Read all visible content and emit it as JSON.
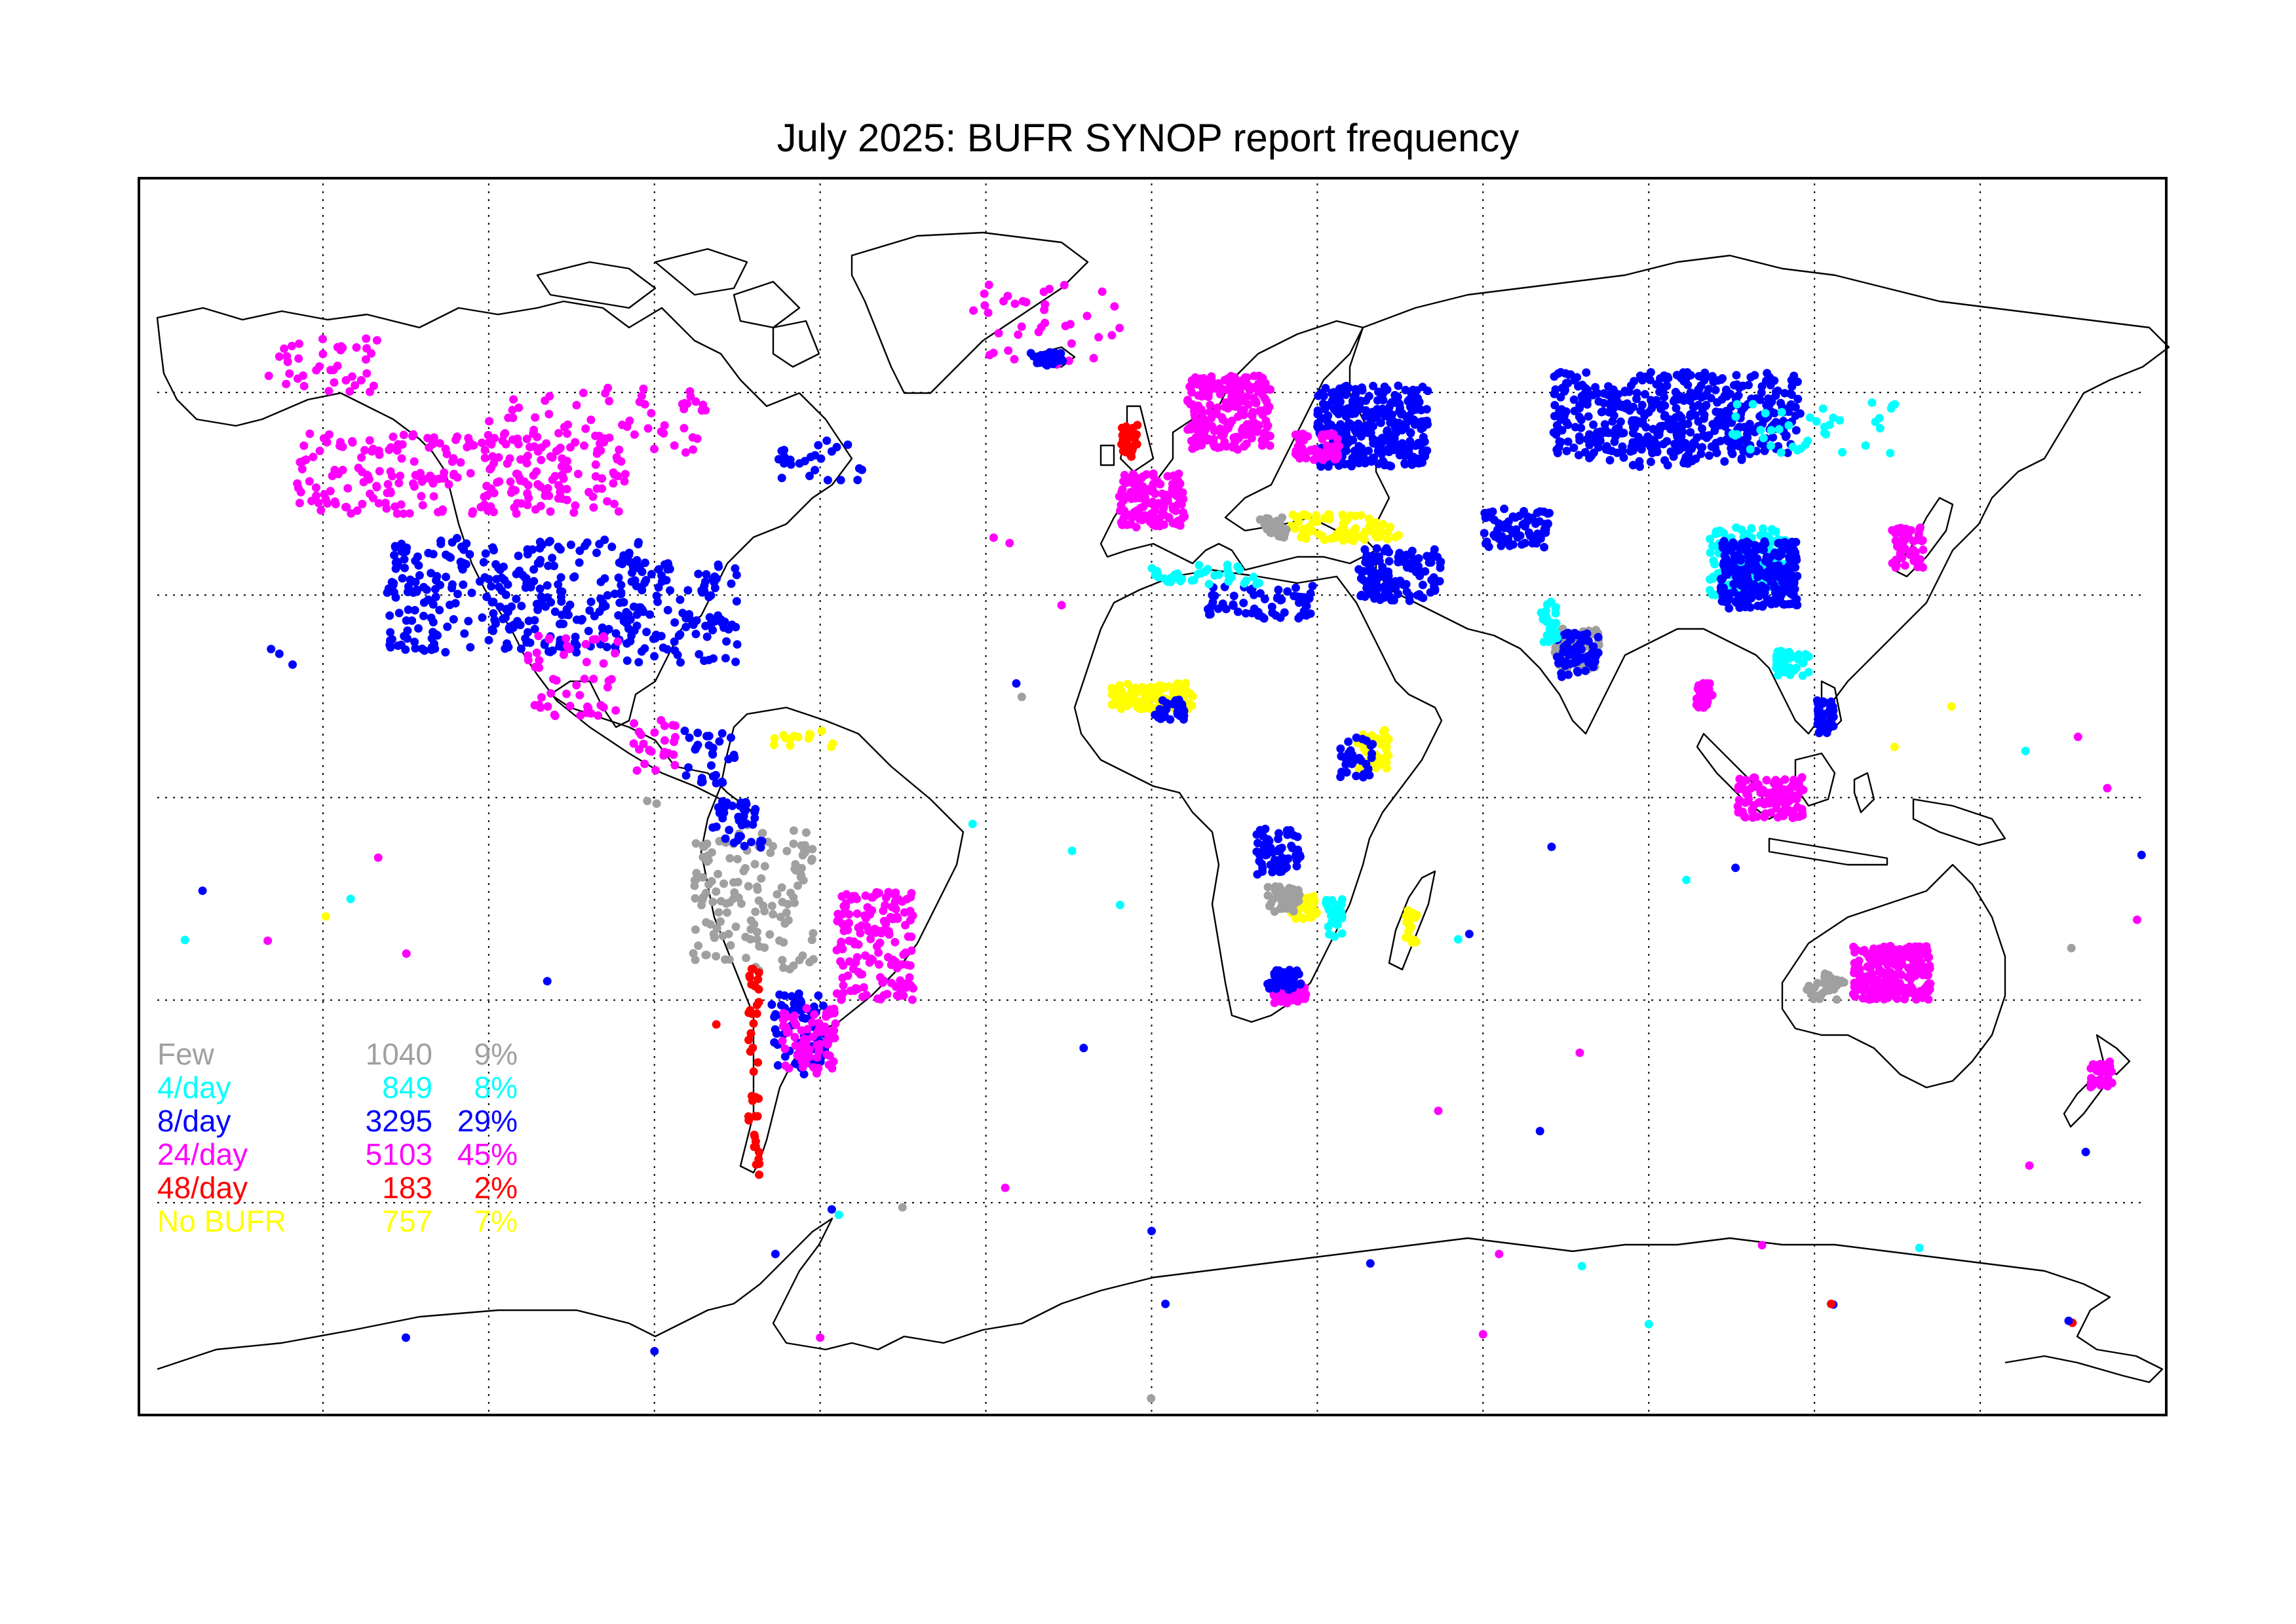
{
  "title": "July 2025: BUFR SYNOP report frequency",
  "map": {
    "projection": "equirectangular",
    "lon_range": [
      -180,
      180
    ],
    "lat_range": [
      -90,
      90
    ],
    "graticule_lon": [
      -150,
      -120,
      -90,
      -60,
      -30,
      0,
      30,
      60,
      90,
      120,
      150
    ],
    "graticule_lat": [
      -60,
      -30,
      0,
      30,
      60
    ],
    "graticule_style": "dotted"
  },
  "categories": [
    {
      "key": "few",
      "label": "Few",
      "count": "1040",
      "percent": "9%",
      "color": "#a0a0a0"
    },
    {
      "key": "four",
      "label": "4/day",
      "count": "849",
      "percent": "8%",
      "color": "#00ffff"
    },
    {
      "key": "eight",
      "label": "8/day",
      "count": "3295",
      "percent": "29%",
      "color": "#0000ff"
    },
    {
      "key": "t24",
      "label": "24/day",
      "count": "5103",
      "percent": "45%",
      "color": "#ff00ff"
    },
    {
      "key": "t48",
      "label": "48/day",
      "count": "183",
      "percent": "2%",
      "color": "#ff0000"
    },
    {
      "key": "nobufr",
      "label": "No BUFR",
      "count": "757",
      "percent": "7%",
      "color": "#ffff00"
    }
  ],
  "legend": {
    "placement": "lower-left"
  },
  "clusters": [
    {
      "cat": "t24",
      "lon": -125,
      "lat": 48,
      "w": 60,
      "h": 12,
      "n": 260
    },
    {
      "cat": "t24",
      "lon": -150,
      "lat": 64,
      "w": 20,
      "h": 8,
      "n": 40
    },
    {
      "cat": "t24",
      "lon": -100,
      "lat": 56,
      "w": 40,
      "h": 10,
      "n": 60
    },
    {
      "cat": "eight",
      "lon": -115,
      "lat": 30,
      "w": 47,
      "h": 17,
      "n": 320
    },
    {
      "cat": "eight",
      "lon": -85,
      "lat": 28,
      "w": 20,
      "h": 16,
      "n": 100
    },
    {
      "cat": "t24",
      "lon": -105,
      "lat": 18,
      "w": 18,
      "h": 12,
      "n": 50
    },
    {
      "cat": "t24",
      "lon": -90,
      "lat": 8,
      "w": 8,
      "h": 8,
      "n": 25
    },
    {
      "cat": "eight",
      "lon": -80,
      "lat": 6,
      "w": 10,
      "h": 8,
      "n": 30
    },
    {
      "cat": "few",
      "lon": -72,
      "lat": -15,
      "w": 22,
      "h": 22,
      "n": 140
    },
    {
      "cat": "t24",
      "lon": -50,
      "lat": -22,
      "w": 14,
      "h": 16,
      "n": 150
    },
    {
      "cat": "eight",
      "lon": -64,
      "lat": -35,
      "w": 10,
      "h": 12,
      "n": 70
    },
    {
      "cat": "t24",
      "lon": -62,
      "lat": -36,
      "w": 10,
      "h": 10,
      "n": 80
    },
    {
      "cat": "t48",
      "lon": -72,
      "lat": -40,
      "w": 2,
      "h": 32,
      "n": 40
    },
    {
      "cat": "eight",
      "lon": -75,
      "lat": -4,
      "w": 9,
      "h": 7,
      "n": 40
    },
    {
      "cat": "nobufr",
      "lon": -63,
      "lat": 9,
      "w": 11,
      "h": 3,
      "n": 15
    },
    {
      "cat": "eight",
      "lon": -60,
      "lat": 50,
      "w": 16,
      "h": 6,
      "n": 25
    },
    {
      "cat": "t24",
      "lon": -20,
      "lat": 70,
      "w": 30,
      "h": 12,
      "n": 40
    },
    {
      "cat": "eight",
      "lon": -19,
      "lat": 65,
      "w": 6,
      "h": 2,
      "n": 25
    },
    {
      "cat": "t24",
      "lon": 14,
      "lat": 57,
      "w": 15,
      "h": 11,
      "n": 220
    },
    {
      "cat": "t24",
      "lon": 0,
      "lat": 44,
      "w": 12,
      "h": 8,
      "n": 140
    },
    {
      "cat": "t48",
      "lon": -4,
      "lat": 53,
      "w": 3,
      "h": 5,
      "n": 35
    },
    {
      "cat": "eight",
      "lon": 40,
      "lat": 55,
      "w": 20,
      "h": 12,
      "n": 330
    },
    {
      "cat": "eight",
      "lon": 95,
      "lat": 57,
      "w": 45,
      "h": 12,
      "n": 380
    },
    {
      "cat": "four",
      "lon": 108,
      "lat": 35,
      "w": 14,
      "h": 10,
      "n": 130
    },
    {
      "cat": "eight",
      "lon": 110,
      "lat": 33,
      "w": 14,
      "h": 10,
      "n": 230
    },
    {
      "cat": "t24",
      "lon": 30,
      "lat": 52,
      "w": 8,
      "h": 4,
      "n": 60
    },
    {
      "cat": "t24",
      "lon": 137,
      "lat": 37,
      "w": 6,
      "h": 6,
      "n": 50
    },
    {
      "cat": "nobufr",
      "lon": 35,
      "lat": 40,
      "w": 20,
      "h": 4,
      "n": 70
    },
    {
      "cat": "few",
      "lon": 22,
      "lat": 40,
      "w": 5,
      "h": 3,
      "n": 30
    },
    {
      "cat": "eight",
      "lon": 45,
      "lat": 33,
      "w": 15,
      "h": 8,
      "n": 120
    },
    {
      "cat": "eight",
      "lon": 20,
      "lat": 29,
      "w": 20,
      "h": 5,
      "n": 60
    },
    {
      "cat": "four",
      "lon": 10,
      "lat": 33,
      "w": 20,
      "h": 3,
      "n": 40
    },
    {
      "cat": "nobufr",
      "lon": 0,
      "lat": 15,
      "w": 15,
      "h": 4,
      "n": 120
    },
    {
      "cat": "eight",
      "lon": 3,
      "lat": 13,
      "w": 6,
      "h": 3,
      "n": 30
    },
    {
      "cat": "eight",
      "lon": 23,
      "lat": -8,
      "w": 8,
      "h": 7,
      "n": 60
    },
    {
      "cat": "nobufr",
      "lon": 27,
      "lat": -16,
      "w": 6,
      "h": 4,
      "n": 50
    },
    {
      "cat": "few",
      "lon": 24,
      "lat": -15,
      "w": 6,
      "h": 4,
      "n": 50
    },
    {
      "cat": "four",
      "lon": 33,
      "lat": -18,
      "w": 3,
      "h": 6,
      "n": 30
    },
    {
      "cat": "t24",
      "lon": 25,
      "lat": -29,
      "w": 6,
      "h": 3,
      "n": 60
    },
    {
      "cat": "eight",
      "lon": 24,
      "lat": -27,
      "w": 6,
      "h": 3,
      "n": 40
    },
    {
      "cat": "nobufr",
      "lon": 40,
      "lat": 7,
      "w": 6,
      "h": 6,
      "n": 40
    },
    {
      "cat": "eight",
      "lon": 37,
      "lat": 6,
      "w": 6,
      "h": 6,
      "n": 30
    },
    {
      "cat": "few",
      "lon": 77,
      "lat": 22,
      "w": 8,
      "h": 6,
      "n": 60
    },
    {
      "cat": "eight",
      "lon": 77,
      "lat": 21,
      "w": 8,
      "h": 7,
      "n": 60
    },
    {
      "cat": "four",
      "lon": 72,
      "lat": 26,
      "w": 3,
      "h": 6,
      "n": 25
    },
    {
      "cat": "t24",
      "lon": 100,
      "lat": 15,
      "w": 3,
      "h": 4,
      "n": 30
    },
    {
      "cat": "t24",
      "lon": 112,
      "lat": 0,
      "w": 12,
      "h": 6,
      "n": 100
    },
    {
      "cat": "eight",
      "lon": 122,
      "lat": 12,
      "w": 3,
      "h": 5,
      "n": 40
    },
    {
      "cat": "four",
      "lon": 116,
      "lat": 20,
      "w": 6,
      "h": 4,
      "n": 40
    },
    {
      "cat": "t24",
      "lon": 134,
      "lat": -26,
      "w": 14,
      "h": 8,
      "n": 230
    },
    {
      "cat": "few",
      "lon": 122,
      "lat": -28,
      "w": 7,
      "h": 4,
      "n": 30
    },
    {
      "cat": "t24",
      "lon": 172,
      "lat": -41,
      "w": 4,
      "h": 4,
      "n": 35
    },
    {
      "cat": "nobufr",
      "lon": 47,
      "lat": -19,
      "w": 2,
      "h": 5,
      "n": 20
    },
    {
      "cat": "eight",
      "lon": 93,
      "lat": 54,
      "w": 32,
      "h": 10,
      "n": 120
    },
    {
      "cat": "four",
      "lon": 120,
      "lat": 55,
      "w": 30,
      "h": 8,
      "n": 40
    },
    {
      "cat": "eight",
      "lon": 66,
      "lat": 40,
      "w": 12,
      "h": 6,
      "n": 70
    }
  ],
  "points": [
    {
      "cat": "eight",
      "lon": -155.5,
      "lat": 19.7
    },
    {
      "cat": "eight",
      "lon": -157.9,
      "lat": 21.3
    },
    {
      "cat": "eight",
      "lon": -159.4,
      "lat": 22.0
    },
    {
      "cat": "nobufr",
      "lon": -149.5,
      "lat": -17.6
    },
    {
      "cat": "four",
      "lon": -145.0,
      "lat": -15.0
    },
    {
      "cat": "t24",
      "lon": -140.0,
      "lat": -8.9
    },
    {
      "cat": "eight",
      "lon": -171.8,
      "lat": -13.8
    },
    {
      "cat": "t24",
      "lon": -160.0,
      "lat": -21.2
    },
    {
      "cat": "four",
      "lon": -175.0,
      "lat": -21.1
    },
    {
      "cat": "t24",
      "lon": -134.9,
      "lat": -23.1
    },
    {
      "cat": "eight",
      "lon": -109.4,
      "lat": -27.2
    },
    {
      "cat": "t48",
      "lon": -78.8,
      "lat": -33.6
    },
    {
      "cat": "few",
      "lon": -89.6,
      "lat": -0.9
    },
    {
      "cat": "few",
      "lon": -91.3,
      "lat": -0.5
    },
    {
      "cat": "four",
      "lon": -14.4,
      "lat": -7.9
    },
    {
      "cat": "four",
      "lon": -5.7,
      "lat": -15.9
    },
    {
      "cat": "four",
      "lon": -32.4,
      "lat": -3.9
    },
    {
      "cat": "eight",
      "lon": -12.3,
      "lat": -37.1
    },
    {
      "cat": "eight",
      "lon": -24.5,
      "lat": 16.9
    },
    {
      "cat": "few",
      "lon": -23.5,
      "lat": 14.9
    },
    {
      "cat": "t24",
      "lon": -16.3,
      "lat": 28.5
    },
    {
      "cat": "t24",
      "lon": -25.7,
      "lat": 37.7
    },
    {
      "cat": "t24",
      "lon": -28.6,
      "lat": 38.5
    },
    {
      "cat": "four",
      "lon": 55.5,
      "lat": -21.0
    },
    {
      "cat": "eight",
      "lon": 57.5,
      "lat": -20.2
    },
    {
      "cat": "eight",
      "lon": 72.4,
      "lat": -7.3
    },
    {
      "cat": "t24",
      "lon": 77.5,
      "lat": -37.8
    },
    {
      "cat": "eight",
      "lon": 70.3,
      "lat": -49.4
    },
    {
      "cat": "t24",
      "lon": 51.9,
      "lat": -46.4
    },
    {
      "cat": "four",
      "lon": 96.8,
      "lat": -12.2
    },
    {
      "cat": "eight",
      "lon": 105.7,
      "lat": -10.4
    },
    {
      "cat": "nobufr",
      "lon": 134.5,
      "lat": 7.5
    },
    {
      "cat": "nobufr",
      "lon": 144.8,
      "lat": 13.5
    },
    {
      "cat": "four",
      "lon": 158.2,
      "lat": 6.9
    },
    {
      "cat": "t24",
      "lon": 167.7,
      "lat": 9.0
    },
    {
      "cat": "t24",
      "lon": 173.0,
      "lat": 1.4
    },
    {
      "cat": "few",
      "lon": 166.5,
      "lat": -22.3
    },
    {
      "cat": "t24",
      "lon": 178.4,
      "lat": -18.1
    },
    {
      "cat": "eight",
      "lon": 179.2,
      "lat": -8.5
    },
    {
      "cat": "t24",
      "lon": 158.9,
      "lat": -54.5
    },
    {
      "cat": "eight",
      "lon": 169.1,
      "lat": -52.5
    },
    {
      "cat": "t48",
      "lon": 166.7,
      "lat": -77.8
    },
    {
      "cat": "eight",
      "lon": -68.1,
      "lat": -67.6
    },
    {
      "cat": "eight",
      "lon": -57.9,
      "lat": -61.0
    },
    {
      "cat": "four",
      "lon": -56.6,
      "lat": -61.8
    },
    {
      "cat": "t24",
      "lon": -26.5,
      "lat": -57.8
    },
    {
      "cat": "few",
      "lon": -45.1,
      "lat": -60.7
    },
    {
      "cat": "eight",
      "lon": 2.5,
      "lat": -75.0
    },
    {
      "cat": "eight",
      "lon": 39.6,
      "lat": -69.0
    },
    {
      "cat": "t24",
      "lon": 62.9,
      "lat": -67.6
    },
    {
      "cat": "four",
      "lon": 77.9,
      "lat": -69.4
    },
    {
      "cat": "t24",
      "lon": 110.5,
      "lat": -66.3
    },
    {
      "cat": "eight",
      "lon": 123.4,
      "lat": -75.1
    },
    {
      "cat": "t48",
      "lon": 123.0,
      "lat": -75.0
    },
    {
      "cat": "four",
      "lon": 139.0,
      "lat": -66.7
    },
    {
      "cat": "eight",
      "lon": 166.0,
      "lat": -77.5
    },
    {
      "cat": "few",
      "lon": -0.1,
      "lat": -89.0
    },
    {
      "cat": "eight",
      "lon": -135.0,
      "lat": -80.0
    },
    {
      "cat": "t24",
      "lon": -60.0,
      "lat": -80.0
    },
    {
      "cat": "eight",
      "lon": -90.0,
      "lat": -82.0
    },
    {
      "cat": "four",
      "lon": 90.0,
      "lat": -78.0
    },
    {
      "cat": "t24",
      "lon": 60.0,
      "lat": -79.5
    },
    {
      "cat": "eight",
      "lon": 0.0,
      "lat": -64.2
    }
  ]
}
